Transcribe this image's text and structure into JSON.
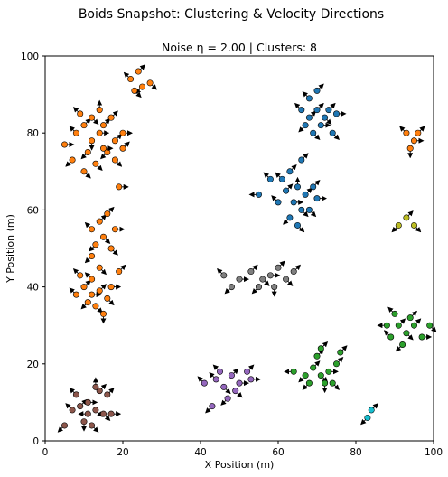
{
  "chart_data": {
    "type": "scatter",
    "suptitle": "Boids Snapshot: Clustering & Velocity Directions",
    "title": "Noise η = 2.00 | Clusters: 8",
    "xlabel": "X Position (m)",
    "ylabel": "Y Position (m)",
    "xlim": [
      0,
      100
    ],
    "ylim": [
      0,
      100
    ],
    "xticks": [
      "0",
      "20",
      "40",
      "60",
      "80",
      "100"
    ],
    "yticks": [
      "0",
      "20",
      "40",
      "60",
      "80",
      "100"
    ],
    "grid": false,
    "legend": "none",
    "series": [
      {
        "color": "#ff7f0e",
        "points": [
          [
            22,
            94,
            -1,
            1
          ],
          [
            24,
            96,
            1,
            1
          ],
          [
            27,
            93,
            1,
            -1
          ],
          [
            25,
            92,
            -1,
            -1
          ],
          [
            23,
            91,
            1,
            -1
          ]
        ]
      },
      {
        "color": "#ff7f0e",
        "points": [
          [
            5,
            77,
            1,
            0
          ],
          [
            8,
            80,
            -1,
            1
          ],
          [
            10,
            82,
            1,
            1
          ],
          [
            12,
            78,
            0,
            -1
          ],
          [
            14,
            80,
            1,
            0
          ],
          [
            16,
            75,
            -1,
            -1
          ],
          [
            18,
            78,
            1,
            1
          ],
          [
            20,
            80,
            1,
            0
          ],
          [
            9,
            85,
            -1,
            1
          ],
          [
            12,
            84,
            1,
            -1
          ],
          [
            15,
            82,
            1,
            1
          ],
          [
            17,
            84,
            1,
            1
          ],
          [
            11,
            75,
            -1,
            -1
          ],
          [
            13,
            72,
            1,
            -1
          ],
          [
            15,
            76,
            1,
            0
          ],
          [
            18,
            73,
            1,
            -1
          ],
          [
            7,
            73,
            -1,
            -1
          ],
          [
            10,
            70,
            1,
            -1
          ],
          [
            20,
            76,
            1,
            1
          ],
          [
            14,
            86,
            0,
            1
          ],
          [
            19,
            66,
            1,
            0
          ]
        ]
      },
      {
        "color": "#ff7f0e",
        "points": [
          [
            12,
            55,
            -1,
            1
          ],
          [
            14,
            57,
            1,
            1
          ],
          [
            16,
            59,
            1,
            1
          ],
          [
            13,
            51,
            -1,
            -1
          ],
          [
            15,
            53,
            1,
            -1
          ],
          [
            17,
            50,
            1,
            -1
          ],
          [
            12,
            48,
            -1,
            -1
          ],
          [
            14,
            45,
            1,
            -1
          ],
          [
            18,
            55,
            1,
            0
          ]
        ]
      },
      {
        "color": "#ff7f0e",
        "points": [
          [
            8,
            38,
            -1,
            1
          ],
          [
            10,
            40,
            1,
            1
          ],
          [
            12,
            42,
            -1,
            1
          ],
          [
            14,
            39,
            1,
            1
          ],
          [
            16,
            37,
            1,
            -1
          ],
          [
            11,
            36,
            -1,
            -1
          ],
          [
            13,
            35,
            1,
            -1
          ],
          [
            15,
            33,
            0,
            -1
          ],
          [
            17,
            40,
            1,
            0
          ],
          [
            9,
            43,
            -1,
            1
          ],
          [
            19,
            44,
            1,
            1
          ],
          [
            12,
            38,
            1,
            0
          ]
        ]
      },
      {
        "color": "#1f77b4",
        "points": [
          [
            66,
            86,
            -1,
            1
          ],
          [
            68,
            84,
            1,
            1
          ],
          [
            70,
            86,
            1,
            1
          ],
          [
            72,
            84,
            1,
            -1
          ],
          [
            67,
            82,
            -1,
            -1
          ],
          [
            69,
            80,
            1,
            -1
          ],
          [
            71,
            82,
            1,
            0
          ],
          [
            73,
            86,
            1,
            1
          ],
          [
            70,
            91,
            1,
            1
          ],
          [
            75,
            85,
            1,
            0
          ],
          [
            68,
            89,
            -1,
            1
          ],
          [
            74,
            80,
            1,
            -1
          ]
        ]
      },
      {
        "color": "#1f77b4",
        "points": [
          [
            60,
            62,
            -1,
            1
          ],
          [
            62,
            65,
            1,
            1
          ],
          [
            64,
            62,
            1,
            0
          ],
          [
            66,
            60,
            1,
            -1
          ],
          [
            63,
            58,
            -1,
            -1
          ],
          [
            65,
            56,
            1,
            -1
          ],
          [
            67,
            64,
            1,
            1
          ],
          [
            69,
            66,
            1,
            1
          ],
          [
            68,
            60,
            1,
            -1
          ],
          [
            61,
            68,
            -1,
            1
          ],
          [
            63,
            70,
            1,
            1
          ],
          [
            65,
            66,
            0,
            1
          ],
          [
            70,
            63,
            1,
            0
          ],
          [
            55,
            64,
            -1,
            0
          ],
          [
            58,
            68,
            -1,
            1
          ],
          [
            66,
            73,
            1,
            1
          ]
        ]
      },
      {
        "color": "#bcbd22",
        "points": [
          [
            91,
            56,
            -1,
            -1
          ],
          [
            93,
            58,
            1,
            1
          ],
          [
            95,
            56,
            1,
            -1
          ]
        ]
      },
      {
        "color": "#ff7f0e",
        "points": [
          [
            93,
            80,
            -1,
            1
          ],
          [
            95,
            78,
            1,
            0
          ],
          [
            94,
            76,
            0,
            -1
          ],
          [
            96,
            80,
            1,
            1
          ]
        ]
      },
      {
        "color": "#7f7f7f",
        "points": [
          [
            46,
            43,
            -1,
            1
          ],
          [
            50,
            42,
            1,
            0
          ],
          [
            53,
            44,
            1,
            1
          ],
          [
            56,
            42,
            1,
            -1
          ],
          [
            58,
            43,
            1,
            0
          ],
          [
            60,
            45,
            1,
            1
          ],
          [
            62,
            42,
            1,
            -1
          ],
          [
            55,
            40,
            -1,
            -1
          ],
          [
            48,
            40,
            -1,
            -1
          ],
          [
            64,
            44,
            1,
            1
          ],
          [
            59,
            40,
            0,
            -1
          ]
        ]
      },
      {
        "color": "#17becf",
        "points": [
          [
            83,
            6,
            -1,
            -1
          ],
          [
            84,
            8,
            1,
            1
          ]
        ]
      },
      {
        "color": "#2ca02c",
        "points": [
          [
            89,
            27,
            -1,
            1
          ],
          [
            91,
            30,
            1,
            1
          ],
          [
            93,
            28,
            1,
            -1
          ],
          [
            95,
            30,
            1,
            1
          ],
          [
            92,
            25,
            -1,
            -1
          ],
          [
            94,
            32,
            1,
            1
          ],
          [
            97,
            27,
            1,
            0
          ],
          [
            90,
            33,
            -1,
            1
          ],
          [
            88,
            30,
            -1,
            0
          ],
          [
            99,
            30,
            1,
            -1
          ]
        ]
      },
      {
        "color": "#2ca02c",
        "points": [
          [
            64,
            18,
            -1,
            0
          ],
          [
            67,
            17,
            -1,
            -1
          ],
          [
            69,
            19,
            1,
            1
          ],
          [
            71,
            17,
            1,
            -1
          ],
          [
            73,
            18,
            1,
            0
          ],
          [
            70,
            22,
            1,
            1
          ],
          [
            72,
            15,
            0,
            -1
          ],
          [
            75,
            20,
            1,
            1
          ],
          [
            68,
            15,
            -1,
            -1
          ],
          [
            76,
            23,
            1,
            1
          ],
          [
            74,
            15,
            1,
            -1
          ],
          [
            71,
            24,
            1,
            1
          ]
        ]
      },
      {
        "color": "#9467bd",
        "points": [
          [
            41,
            15,
            -1,
            1
          ],
          [
            44,
            16,
            -1,
            1
          ],
          [
            46,
            14,
            1,
            -1
          ],
          [
            48,
            17,
            1,
            1
          ],
          [
            50,
            15,
            1,
            0
          ],
          [
            52,
            18,
            1,
            1
          ],
          [
            47,
            11,
            -1,
            -1
          ],
          [
            49,
            13,
            1,
            -1
          ],
          [
            43,
            9,
            -1,
            -1
          ],
          [
            45,
            18,
            -1,
            1
          ],
          [
            53,
            16,
            1,
            0
          ]
        ]
      },
      {
        "color": "#8c564b",
        "points": [
          [
            5,
            4,
            -1,
            -1
          ],
          [
            7,
            8,
            -1,
            1
          ],
          [
            9,
            9,
            1,
            1
          ],
          [
            11,
            10,
            1,
            0
          ],
          [
            13,
            8,
            1,
            -1
          ],
          [
            15,
            7,
            1,
            -1
          ],
          [
            10,
            5,
            0,
            -1
          ],
          [
            12,
            4,
            1,
            -1
          ],
          [
            14,
            13,
            1,
            1
          ],
          [
            16,
            12,
            1,
            1
          ],
          [
            8,
            12,
            -1,
            1
          ],
          [
            13,
            14,
            0,
            1
          ],
          [
            17,
            7,
            1,
            0
          ],
          [
            11,
            7,
            -1,
            0
          ]
        ]
      }
    ]
  }
}
